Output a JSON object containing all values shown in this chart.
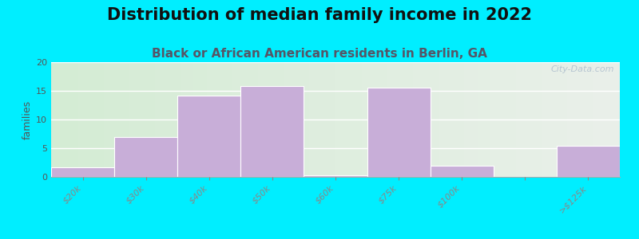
{
  "title": "Distribution of median family income in 2022",
  "subtitle": "Black or African American residents in Berlin, GA",
  "categories": [
    "$20k",
    "$30k",
    "$40k",
    "$50k",
    "$60k",
    "$75k",
    "$100k",
    "",
    ">$125k"
  ],
  "values": [
    1.7,
    7.0,
    14.2,
    15.8,
    0.3,
    15.6,
    2.0,
    0.0,
    5.4
  ],
  "bar_color": "#c8aed8",
  "background_outer": "#00eeff",
  "background_inner_top_left": "#d4ecd4",
  "background_inner_top_right": "#eaf0ea",
  "background_inner_bottom_left": "#e8f5e8",
  "background_inner_bottom_right": "#f8f8f5",
  "ylabel": "families",
  "ylim": [
    0,
    20
  ],
  "yticks": [
    0,
    5,
    10,
    15,
    20
  ],
  "title_fontsize": 15,
  "subtitle_fontsize": 11,
  "watermark": "City-Data.com",
  "grid_color": "#ffffff"
}
